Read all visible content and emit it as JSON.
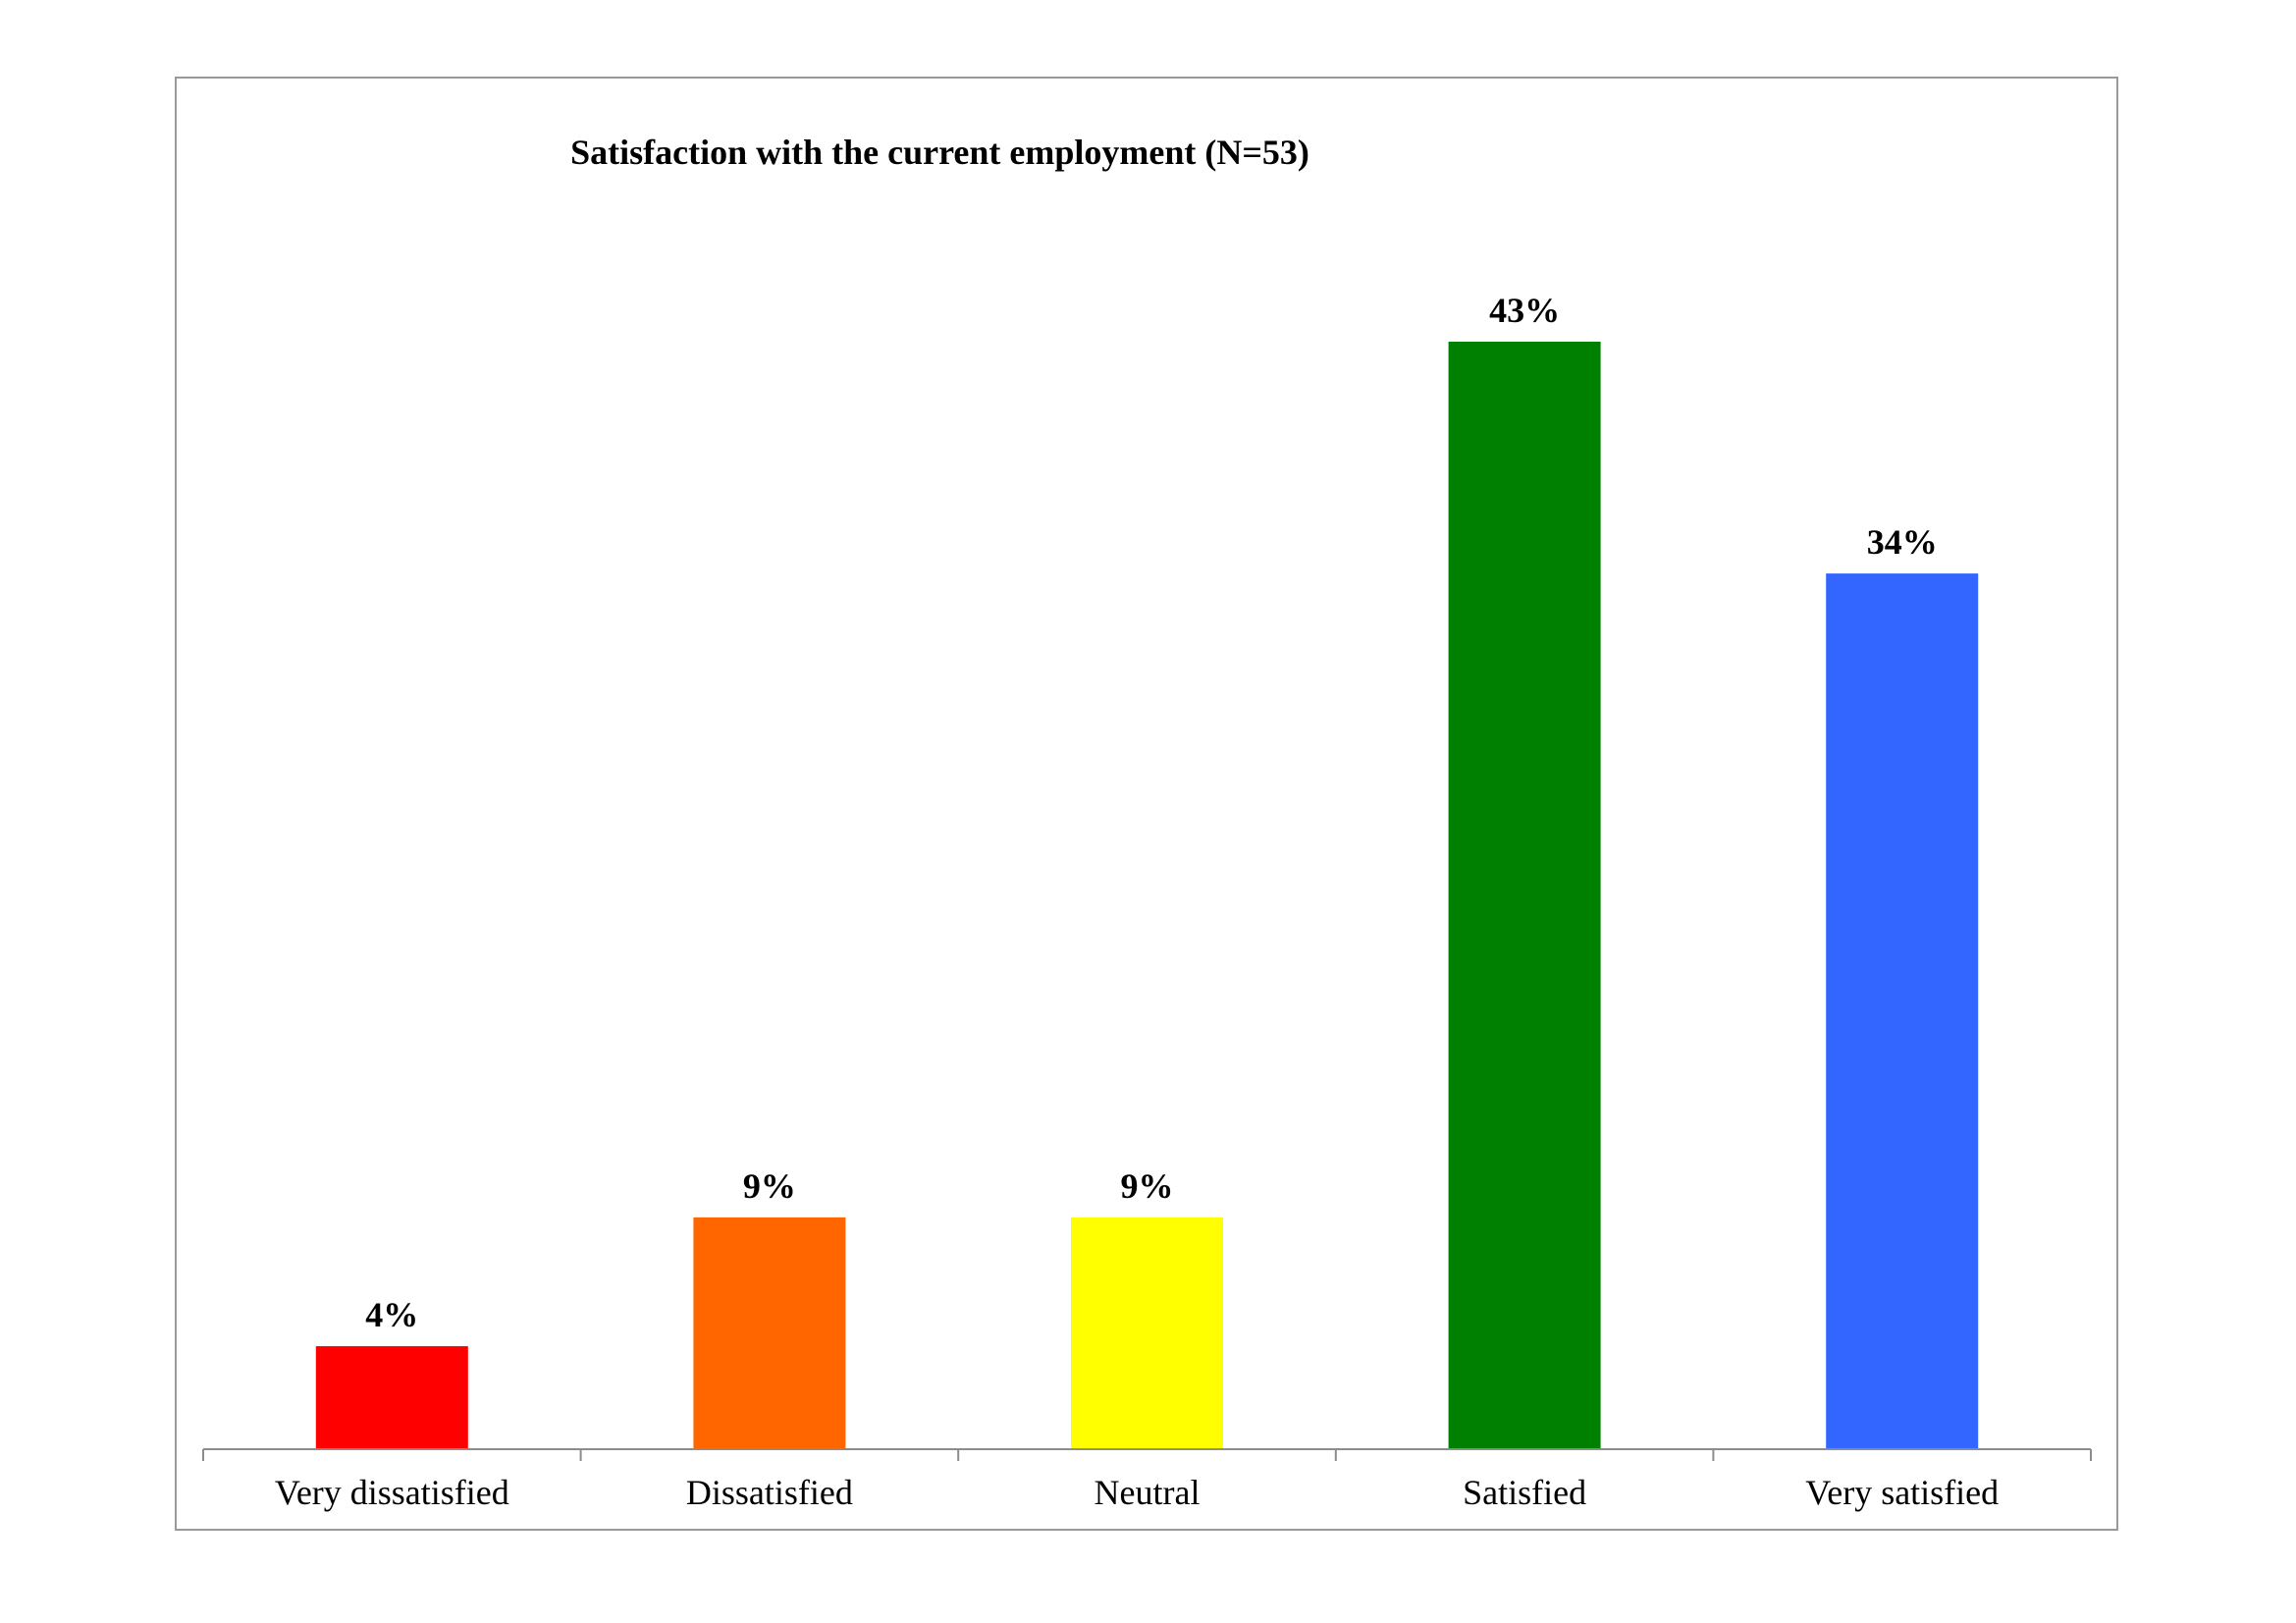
{
  "chart_data": {
    "type": "bar",
    "title": "Satisfaction with the current employment (N=53)",
    "xlabel": "",
    "ylabel": "",
    "categories": [
      "Very dissatisfied",
      "Dissatisfied",
      "Neutral",
      "Satisfied",
      "Very satisfied"
    ],
    "values": [
      4,
      9,
      9,
      43,
      34
    ],
    "value_labels": [
      "4%",
      "9%",
      "9%",
      "43%",
      "34%"
    ],
    "colors": [
      "#ff0000",
      "#ff6600",
      "#ffff00",
      "#008000",
      "#3366ff"
    ],
    "ylim": [
      0,
      43
    ],
    "grid": false,
    "legend": "none"
  }
}
